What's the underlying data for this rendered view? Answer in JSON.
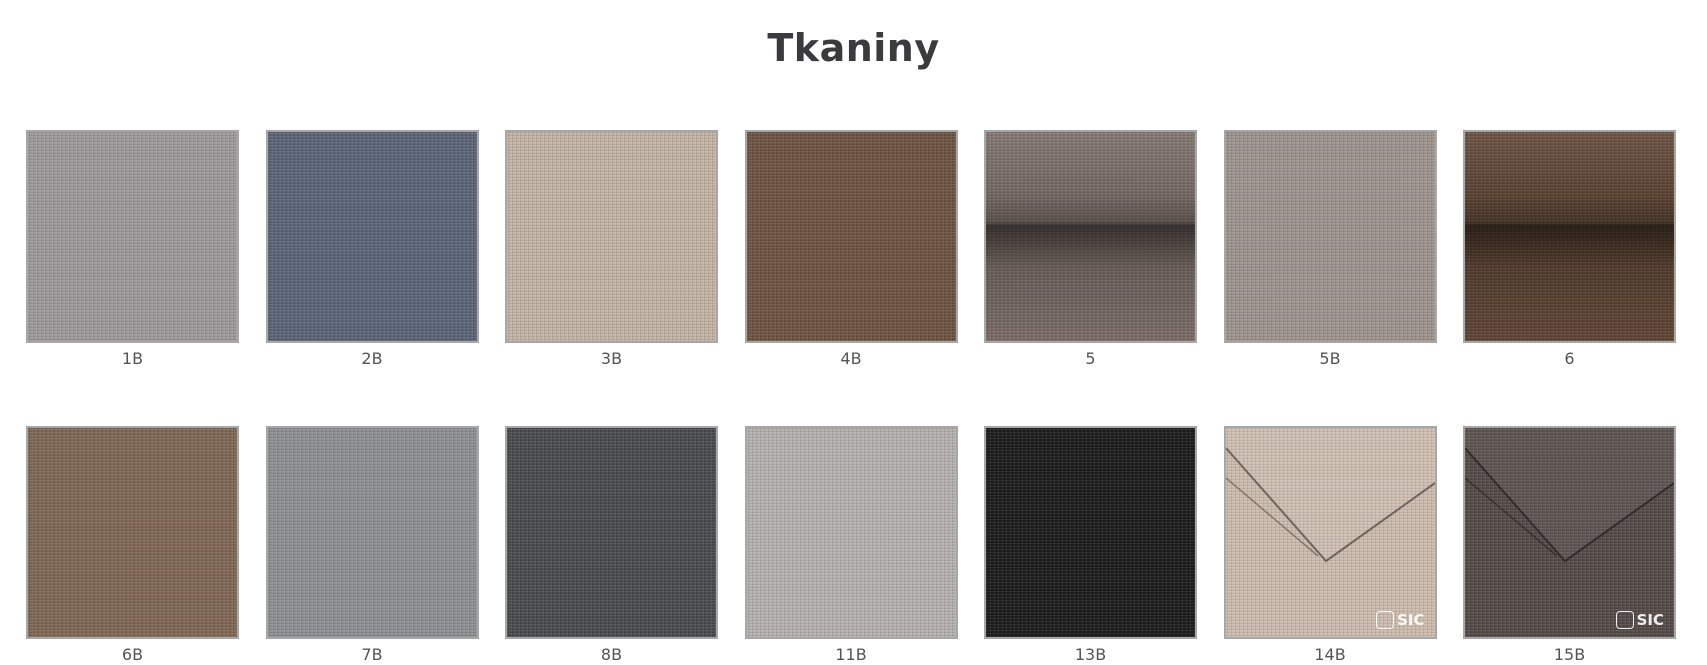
{
  "page": {
    "title": "Tkaniny"
  },
  "fabrics": [
    {
      "code": "1B",
      "color": "#9c9a9b",
      "style": "plain"
    },
    {
      "code": "2B",
      "color": "#5b6577",
      "style": "plain"
    },
    {
      "code": "3B",
      "color": "#c2b4a6",
      "style": "plain"
    },
    {
      "code": "4B",
      "color": "#6e5443",
      "style": "plain"
    },
    {
      "code": "5",
      "color": "#7a6c66",
      "style": "roll"
    },
    {
      "code": "5B",
      "color": "#9d948d",
      "style": "plain"
    },
    {
      "code": "6",
      "color": "#5e4535",
      "style": "roll"
    },
    {
      "code": "6B",
      "color": "#7f6756",
      "style": "plain"
    },
    {
      "code": "7B",
      "color": "#8d8f93",
      "style": "plain"
    },
    {
      "code": "8B",
      "color": "#4a4b4e",
      "style": "plain"
    },
    {
      "code": "11B",
      "color": "#b5b1ad",
      "style": "plain"
    },
    {
      "code": "13B",
      "color": "#1d1d1e",
      "style": "plain"
    },
    {
      "code": "14B",
      "color": "#cdbcae",
      "style": "fold",
      "logo": "SIC"
    },
    {
      "code": "15B",
      "color": "#544b47",
      "style": "fold",
      "logo": "SIC"
    }
  ]
}
